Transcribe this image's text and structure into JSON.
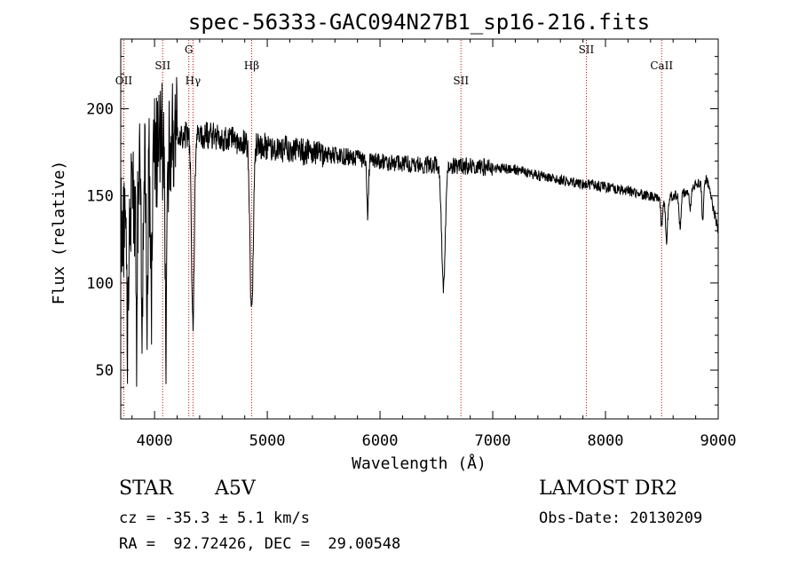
{
  "chart_data": {
    "type": "line",
    "title": "spec-56333-GAC094N27B1_sp16-216.fits",
    "xlabel": "Wavelength (Å)",
    "ylabel": "Flux (relative)",
    "xlim": [
      3700,
      9000
    ],
    "ylim": [
      22,
      240
    ],
    "xticks": [
      4000,
      5000,
      6000,
      7000,
      8000,
      9000
    ],
    "yticks": [
      50,
      100,
      150,
      200
    ],
    "grid": false,
    "line_color": "#000000",
    "marker_color": "#cc0000",
    "spectral_lines": [
      {
        "label": "OII",
        "wavelength": 3727,
        "label_row": 2
      },
      {
        "label": "SII",
        "wavelength": 4072,
        "label_row": 1
      },
      {
        "label": "G",
        "wavelength": 4304,
        "label_row": 0
      },
      {
        "label": "Hγ",
        "wavelength": 4341,
        "label_row": 2
      },
      {
        "label": "Hβ",
        "wavelength": 4861,
        "label_row": 1
      },
      {
        "label": "SII",
        "wavelength": 6718,
        "label_row": 2
      },
      {
        "label": "SII",
        "wavelength": 7830,
        "label_row": 0
      },
      {
        "label": "CaII",
        "wavelength": 8498,
        "label_row": 1
      }
    ],
    "continuum": [
      [
        3700,
        130
      ],
      [
        3900,
        165
      ],
      [
        4100,
        185
      ],
      [
        4500,
        185
      ],
      [
        5000,
        178
      ],
      [
        5500,
        174
      ],
      [
        6000,
        170
      ],
      [
        6300,
        168
      ],
      [
        6800,
        167
      ],
      [
        7200,
        165
      ],
      [
        7500,
        160
      ],
      [
        7800,
        157
      ],
      [
        8000,
        155
      ],
      [
        8200,
        153
      ],
      [
        8500,
        148
      ],
      [
        8700,
        152
      ],
      [
        8900,
        160
      ],
      [
        9000,
        130
      ]
    ],
    "absorption_features": [
      {
        "center": 3760,
        "depth": 80,
        "width": 8
      },
      {
        "center": 3840,
        "depth": 95,
        "width": 6
      },
      {
        "center": 3890,
        "depth": 75,
        "width": 8
      },
      {
        "center": 3935,
        "depth": 100,
        "width": 6
      },
      {
        "center": 3970,
        "depth": 80,
        "width": 8
      },
      {
        "center": 4102,
        "depth": 115,
        "width": 10
      },
      {
        "center": 4340,
        "depth": 110,
        "width": 12
      },
      {
        "center": 4861,
        "depth": 100,
        "width": 14
      },
      {
        "center": 5890,
        "depth": 30,
        "width": 8
      },
      {
        "center": 6563,
        "depth": 70,
        "width": 16
      },
      {
        "center": 8498,
        "depth": 15,
        "width": 8
      },
      {
        "center": 8542,
        "depth": 25,
        "width": 9
      },
      {
        "center": 8662,
        "depth": 20,
        "width": 9
      },
      {
        "center": 8750,
        "depth": 12,
        "width": 8
      },
      {
        "center": 8863,
        "depth": 22,
        "width": 8
      }
    ],
    "noise": [
      {
        "from": 3700,
        "to": 4200,
        "amplitude": 35
      },
      {
        "from": 4200,
        "to": 5500,
        "amplitude": 8
      },
      {
        "from": 5500,
        "to": 7000,
        "amplitude": 5
      },
      {
        "from": 7000,
        "to": 9000,
        "amplitude": 3
      }
    ]
  },
  "info": {
    "object_class": "STAR",
    "subclass": "A5V",
    "cz": "cz = -35.3 ± 5.1 km/s",
    "coords": "RA =  92.72426, DEC =  29.00548",
    "survey": "LAMOST DR2",
    "obs_date": "Obs-Date: 20130209"
  }
}
